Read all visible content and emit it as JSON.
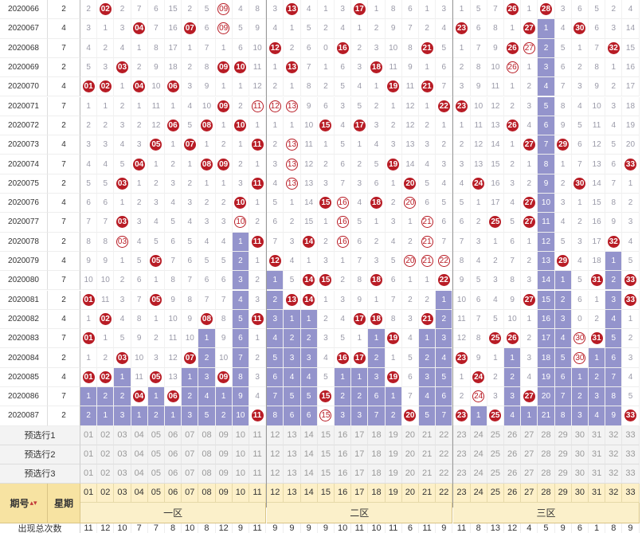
{
  "chart_data": {
    "type": "table",
    "number_range": [
      1,
      33
    ],
    "zones": [
      "一区",
      "二区",
      "三区"
    ],
    "zone_ranges": [
      [
        1,
        11
      ],
      [
        12,
        22
      ],
      [
        23,
        33
      ]
    ],
    "rows": [
      {
        "period": "2020066",
        "weekday": "2",
        "winners": [
          2,
          9,
          13,
          17,
          26,
          28
        ],
        "repeats": [
          9
        ],
        "missing": [
          2,
          0,
          2,
          7,
          6,
          15,
          2,
          5,
          0,
          4,
          8,
          3,
          0,
          4,
          1,
          3,
          0,
          1,
          8,
          6,
          1,
          3,
          1,
          5,
          7,
          0,
          1,
          0,
          3,
          6,
          5,
          2,
          4
        ]
      },
      {
        "period": "2020067",
        "weekday": "4",
        "winners": [
          4,
          7,
          9,
          23,
          27,
          30
        ],
        "repeats": [
          9
        ],
        "missing": [
          3,
          1,
          3,
          0,
          7,
          16,
          0,
          6,
          0,
          5,
          9,
          4,
          1,
          5,
          2,
          4,
          1,
          2,
          9,
          7,
          2,
          4,
          0,
          6,
          8,
          1,
          0,
          1,
          4,
          0,
          6,
          3,
          14
        ]
      },
      {
        "period": "2020068",
        "weekday": "7",
        "winners": [
          12,
          16,
          21,
          26,
          27,
          32
        ],
        "repeats": [
          27
        ],
        "missing": [
          4,
          2,
          4,
          1,
          8,
          17,
          1,
          7,
          1,
          6,
          10,
          0,
          2,
          6,
          0,
          5,
          2,
          3,
          10,
          8,
          0,
          5,
          1,
          7,
          9,
          0,
          0,
          2,
          5,
          1,
          7,
          0,
          15
        ]
      },
      {
        "period": "2020069",
        "weekday": "2",
        "winners": [
          3,
          9,
          10,
          13,
          18,
          26
        ],
        "repeats": [
          26
        ],
        "missing": [
          5,
          3,
          0,
          2,
          9,
          18,
          2,
          8,
          0,
          0,
          11,
          1,
          0,
          7,
          1,
          6,
          3,
          0,
          11,
          9,
          1,
          6,
          2,
          8,
          10,
          0,
          1,
          3,
          6,
          2,
          8,
          1,
          16
        ]
      },
      {
        "period": "2020070",
        "weekday": "4",
        "winners": [
          1,
          2,
          4,
          6,
          19,
          21
        ],
        "repeats": [],
        "missing": [
          0,
          0,
          1,
          0,
          10,
          0,
          3,
          9,
          1,
          1,
          12,
          2,
          1,
          8,
          2,
          5,
          4,
          1,
          0,
          11,
          0,
          7,
          3,
          9,
          11,
          1,
          2,
          4,
          7,
          3,
          9,
          2,
          17
        ]
      },
      {
        "period": "2020071",
        "weekday": "7",
        "winners": [
          9,
          11,
          12,
          13,
          22,
          23
        ],
        "repeats": [
          11,
          12,
          13
        ],
        "missing": [
          1,
          1,
          2,
          1,
          11,
          1,
          4,
          10,
          0,
          2,
          0,
          0,
          0,
          9,
          6,
          3,
          5,
          2,
          1,
          12,
          1,
          0,
          0,
          10,
          12,
          2,
          3,
          5,
          8,
          4,
          10,
          3,
          18
        ]
      },
      {
        "period": "2020072",
        "weekday": "2",
        "winners": [
          6,
          8,
          10,
          15,
          17,
          26
        ],
        "repeats": [],
        "missing": [
          2,
          2,
          3,
          2,
          12,
          0,
          5,
          0,
          1,
          0,
          1,
          1,
          1,
          10,
          0,
          4,
          0,
          3,
          2,
          12,
          2,
          1,
          1,
          11,
          13,
          0,
          4,
          6,
          9,
          5,
          11,
          4,
          19
        ]
      },
      {
        "period": "2020073",
        "weekday": "4",
        "winners": [
          5,
          7,
          11,
          13,
          27,
          29
        ],
        "repeats": [
          13
        ],
        "missing": [
          3,
          3,
          4,
          3,
          0,
          1,
          0,
          1,
          2,
          1,
          0,
          2,
          0,
          11,
          1,
          5,
          1,
          4,
          3,
          13,
          3,
          2,
          2,
          12,
          14,
          1,
          0,
          7,
          0,
          6,
          12,
          5,
          20
        ]
      },
      {
        "period": "2020074",
        "weekday": "7",
        "winners": [
          4,
          8,
          9,
          13,
          19,
          33
        ],
        "repeats": [
          13
        ],
        "missing": [
          4,
          4,
          5,
          0,
          1,
          2,
          1,
          0,
          0,
          2,
          1,
          3,
          0,
          12,
          2,
          6,
          2,
          5,
          0,
          14,
          4,
          3,
          3,
          13,
          15,
          2,
          1,
          8,
          1,
          7,
          13,
          6,
          0
        ]
      },
      {
        "period": "2020075",
        "weekday": "2",
        "winners": [
          3,
          11,
          13,
          20,
          24,
          30
        ],
        "repeats": [
          13
        ],
        "missing": [
          5,
          5,
          0,
          1,
          2,
          3,
          2,
          1,
          1,
          3,
          0,
          4,
          0,
          13,
          3,
          7,
          3,
          6,
          1,
          0,
          5,
          4,
          4,
          0,
          16,
          3,
          2,
          9,
          2,
          0,
          14,
          7,
          1
        ]
      },
      {
        "period": "2020076",
        "weekday": "4",
        "winners": [
          10,
          15,
          16,
          18,
          20,
          27
        ],
        "repeats": [
          16,
          20
        ],
        "missing": [
          6,
          6,
          1,
          2,
          3,
          4,
          3,
          2,
          2,
          0,
          1,
          5,
          1,
          14,
          0,
          0,
          4,
          0,
          2,
          0,
          6,
          5,
          5,
          1,
          17,
          4,
          0,
          10,
          3,
          1,
          15,
          8,
          2
        ]
      },
      {
        "period": "2020077",
        "weekday": "7",
        "winners": [
          3,
          10,
          16,
          21,
          25,
          27
        ],
        "repeats": [
          10,
          16,
          21
        ],
        "missing": [
          7,
          7,
          0,
          3,
          4,
          5,
          4,
          3,
          3,
          0,
          2,
          6,
          2,
          15,
          1,
          0,
          5,
          1,
          3,
          1,
          0,
          6,
          6,
          2,
          0,
          5,
          0,
          11,
          4,
          2,
          16,
          9,
          3
        ]
      },
      {
        "period": "2020078",
        "weekday": "2",
        "winners": [
          3,
          11,
          14,
          16,
          21,
          32
        ],
        "repeats": [
          3,
          16,
          21
        ],
        "missing": [
          8,
          8,
          0,
          4,
          5,
          6,
          5,
          4,
          4,
          1,
          0,
          7,
          3,
          0,
          2,
          0,
          6,
          2,
          4,
          2,
          0,
          7,
          7,
          3,
          1,
          6,
          1,
          12,
          5,
          3,
          17,
          0,
          4
        ]
      },
      {
        "period": "2020079",
        "weekday": "4",
        "winners": [
          5,
          12,
          20,
          21,
          22,
          29
        ],
        "repeats": [
          20,
          21,
          22
        ],
        "missing": [
          9,
          9,
          1,
          5,
          0,
          7,
          6,
          5,
          5,
          2,
          1,
          0,
          4,
          1,
          3,
          1,
          7,
          3,
          5,
          0,
          0,
          0,
          8,
          4,
          2,
          7,
          2,
          13,
          0,
          4,
          18,
          1,
          5
        ]
      },
      {
        "period": "2020080",
        "weekday": "7",
        "winners": [
          14,
          15,
          18,
          22,
          31,
          33
        ],
        "repeats": [],
        "missing": [
          10,
          10,
          2,
          6,
          1,
          8,
          7,
          6,
          6,
          3,
          2,
          1,
          5,
          0,
          0,
          2,
          8,
          0,
          6,
          1,
          1,
          0,
          9,
          5,
          3,
          8,
          3,
          14,
          1,
          5,
          0,
          2,
          0
        ]
      },
      {
        "period": "2020081",
        "weekday": "2",
        "winners": [
          1,
          5,
          13,
          14,
          27,
          33
        ],
        "repeats": [],
        "missing": [
          0,
          11,
          3,
          7,
          0,
          9,
          8,
          7,
          7,
          4,
          3,
          2,
          0,
          0,
          1,
          3,
          9,
          1,
          7,
          2,
          2,
          1,
          10,
          6,
          4,
          9,
          0,
          15,
          2,
          6,
          1,
          3,
          0
        ]
      },
      {
        "period": "2020082",
        "weekday": "4",
        "winners": [
          2,
          8,
          11,
          17,
          18,
          21
        ],
        "repeats": [],
        "missing": [
          1,
          0,
          4,
          8,
          1,
          10,
          9,
          0,
          8,
          5,
          0,
          3,
          1,
          1,
          2,
          4,
          0,
          0,
          8,
          3,
          0,
          2,
          11,
          7,
          5,
          10,
          1,
          16,
          3,
          0,
          2,
          4,
          1
        ]
      },
      {
        "period": "2020083",
        "weekday": "7",
        "winners": [
          1,
          19,
          25,
          26,
          30,
          31
        ],
        "repeats": [
          30
        ],
        "missing": [
          0,
          1,
          5,
          9,
          2,
          11,
          10,
          1,
          9,
          6,
          1,
          4,
          2,
          2,
          3,
          5,
          1,
          1,
          0,
          4,
          1,
          3,
          12,
          8,
          0,
          0,
          2,
          17,
          4,
          0,
          0,
          5,
          2
        ]
      },
      {
        "period": "2020084",
        "weekday": "2",
        "winners": [
          3,
          7,
          16,
          17,
          23,
          30
        ],
        "repeats": [
          30
        ],
        "missing": [
          1,
          2,
          0,
          10,
          3,
          12,
          0,
          2,
          10,
          7,
          2,
          5,
          3,
          3,
          4,
          0,
          0,
          2,
          1,
          5,
          2,
          4,
          0,
          9,
          1,
          1,
          3,
          18,
          5,
          0,
          1,
          6,
          3
        ]
      },
      {
        "period": "2020085",
        "weekday": "4",
        "winners": [
          1,
          2,
          5,
          9,
          19,
          24
        ],
        "repeats": [],
        "missing": [
          0,
          0,
          1,
          11,
          0,
          13,
          1,
          3,
          0,
          8,
          3,
          6,
          4,
          4,
          5,
          1,
          1,
          3,
          0,
          6,
          3,
          5,
          1,
          0,
          2,
          2,
          4,
          19,
          6,
          1,
          2,
          7,
          4
        ]
      },
      {
        "period": "2020086",
        "weekday": "7",
        "winners": [
          4,
          6,
          15,
          24,
          27
        ],
        "repeats": [
          24
        ],
        "missing": [
          1,
          2,
          2,
          0,
          1,
          0,
          2,
          4,
          1,
          9,
          4,
          7,
          5,
          5,
          0,
          2,
          2,
          6,
          1,
          7,
          4,
          6,
          2,
          0,
          3,
          3,
          0,
          20,
          7,
          2,
          3,
          8,
          5
        ]
      },
      {
        "period": "2020087",
        "weekday": "2",
        "winners": [
          11,
          15,
          20,
          23,
          25,
          33
        ],
        "repeats": [
          15
        ],
        "missing": [
          2,
          1,
          3,
          1,
          2,
          1,
          3,
          5,
          2,
          10,
          0,
          8,
          6,
          6,
          0,
          3,
          3,
          7,
          2,
          0,
          5,
          7,
          0,
          1,
          0,
          4,
          1,
          21,
          8,
          3,
          4,
          9,
          0
        ]
      }
    ],
    "preselect_labels": [
      "预选行1",
      "预选行2",
      "预选行3"
    ],
    "header": {
      "period_label": "期号",
      "sort_icon": "sort-arrows-icon",
      "weekday_label": "星期"
    },
    "numbers": [
      "01",
      "02",
      "03",
      "04",
      "05",
      "06",
      "07",
      "08",
      "09",
      "10",
      "11",
      "12",
      "13",
      "14",
      "15",
      "16",
      "17",
      "18",
      "19",
      "20",
      "21",
      "22",
      "23",
      "24",
      "25",
      "26",
      "27",
      "28",
      "29",
      "30",
      "31",
      "32",
      "33"
    ],
    "totals_label": "出现总次数",
    "totals": [
      11,
      12,
      10,
      7,
      7,
      8,
      10,
      8,
      12,
      9,
      11,
      9,
      9,
      9,
      9,
      10,
      11,
      10,
      11,
      6,
      11,
      9,
      11,
      8,
      13,
      12,
      4,
      5,
      9,
      6,
      1,
      8,
      9
    ],
    "colors": {
      "ball": "#b81c25",
      "missing_block": "#9494cc",
      "header": "#fdf0c8"
    }
  }
}
